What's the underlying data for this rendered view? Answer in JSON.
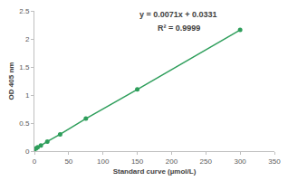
{
  "chart_data": {
    "type": "scatter",
    "x_label": "Standard curve (µmol/L)",
    "y_label": "OD 405 nm",
    "annotations": [
      "y = 0.0071x + 0.0331",
      "R² = 0.9999"
    ],
    "x": [
      0,
      2.34,
      4.69,
      9.38,
      18.75,
      37.5,
      75,
      150,
      300
    ],
    "values": [
      0.03,
      0.05,
      0.07,
      0.1,
      0.17,
      0.3,
      0.58,
      1.1,
      2.16
    ],
    "color": "#2e9e5b",
    "marker": "circle",
    "line_style": "solid",
    "xlim": [
      0,
      350
    ],
    "xticks": [
      0,
      50,
      100,
      150,
      200,
      250,
      300,
      350
    ],
    "ylim": [
      0,
      2.5
    ],
    "yticks": [
      0,
      0.5,
      1,
      1.5,
      2,
      2.5
    ],
    "grid": false
  }
}
